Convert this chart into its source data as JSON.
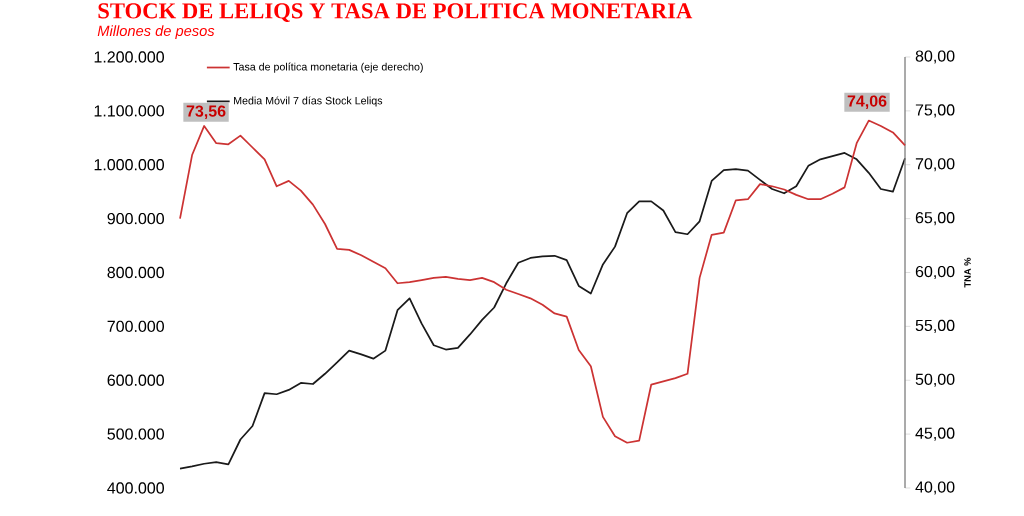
{
  "chart_data": {
    "type": "line",
    "title": "STOCK DE LELIQS Y TASA DE POLITICA MONETARIA",
    "subtitle": "Millones de pesos",
    "y2label": "TNA %",
    "categories": [
      null,
      null,
      null,
      null,
      null,
      null,
      null,
      null,
      null,
      null,
      null,
      null,
      null,
      null,
      null,
      null,
      null,
      null,
      null,
      null,
      null,
      null,
      null,
      null,
      null,
      null,
      null,
      null,
      null,
      null,
      null,
      null,
      null,
      null,
      null,
      null,
      null,
      null,
      null,
      null,
      null,
      null,
      null,
      null,
      null,
      null,
      null,
      null,
      null,
      null,
      null,
      null,
      null,
      null,
      null,
      null,
      null,
      null,
      null,
      null,
      null
    ],
    "series": [
      {
        "name": "Tasa de política monetaria (eje derecho)",
        "color": "#cc3333",
        "axis": "y2",
        "values": [
          65.0,
          70.9,
          73.6,
          72.0,
          71.9,
          72.7,
          71.6,
          70.5,
          68.0,
          68.5,
          67.6,
          66.3,
          64.5,
          62.2,
          62.1,
          61.6,
          61.0,
          60.4,
          59.0,
          59.1,
          59.3,
          59.5,
          59.6,
          59.4,
          59.3,
          59.5,
          59.1,
          58.4,
          58.0,
          57.6,
          57.0,
          56.2,
          55.9,
          52.8,
          51.3,
          46.6,
          44.8,
          44.2,
          44.4,
          49.6,
          49.9,
          50.2,
          50.6,
          59.5,
          63.5,
          63.7,
          66.7,
          66.8,
          68.2,
          68.0,
          67.7,
          67.2,
          66.8,
          66.8,
          67.3,
          67.9,
          72.0,
          74.1,
          73.6,
          73.0,
          71.8
        ]
      },
      {
        "name": "Media Móvil 7 días Stock Leliqs",
        "color": "#1a1a1a",
        "axis": "y",
        "values": [
          436000,
          440000,
          445000,
          448000,
          444000,
          490000,
          515000,
          576000,
          574000,
          582000,
          595000,
          593000,
          612000,
          633000,
          655000,
          648000,
          640000,
          655000,
          730000,
          752000,
          705000,
          665000,
          657000,
          660000,
          685000,
          712000,
          735000,
          780000,
          818000,
          827000,
          830000,
          831000,
          823000,
          775000,
          761000,
          815000,
          848000,
          910000,
          932000,
          932000,
          915000,
          875000,
          871000,
          895000,
          970000,
          990000,
          992000,
          989000,
          972000,
          955000,
          947000,
          960000,
          998000,
          1010000,
          1016000,
          1022000,
          1010000,
          985000,
          955000,
          950000,
          1012000
        ]
      }
    ],
    "ylim": [
      400000,
      1200000
    ],
    "yticks": [
      {
        "value": 400000,
        "label": "400.000"
      },
      {
        "value": 500000,
        "label": "500.000"
      },
      {
        "value": 600000,
        "label": "600.000"
      },
      {
        "value": 700000,
        "label": "700.000"
      },
      {
        "value": 800000,
        "label": "800.000"
      },
      {
        "value": 900000,
        "label": "900.000"
      },
      {
        "value": 1000000,
        "label": "1.000.000"
      },
      {
        "value": 1100000,
        "label": "1.100.000"
      },
      {
        "value": 1200000,
        "label": "1.200.000"
      }
    ],
    "y2lim": [
      40,
      80
    ],
    "y2ticks": [
      {
        "value": 40,
        "label": "40,00"
      },
      {
        "value": 45,
        "label": "45,00"
      },
      {
        "value": 50,
        "label": "50,00"
      },
      {
        "value": 55,
        "label": "55,00"
      },
      {
        "value": 60,
        "label": "60,00"
      },
      {
        "value": 65,
        "label": "65,00"
      },
      {
        "value": 70,
        "label": "70,00"
      },
      {
        "value": 75,
        "label": "75,00"
      },
      {
        "value": 80,
        "label": "80,00"
      }
    ],
    "annotations": [
      "73,56",
      "74,06"
    ],
    "legend": "top left"
  }
}
